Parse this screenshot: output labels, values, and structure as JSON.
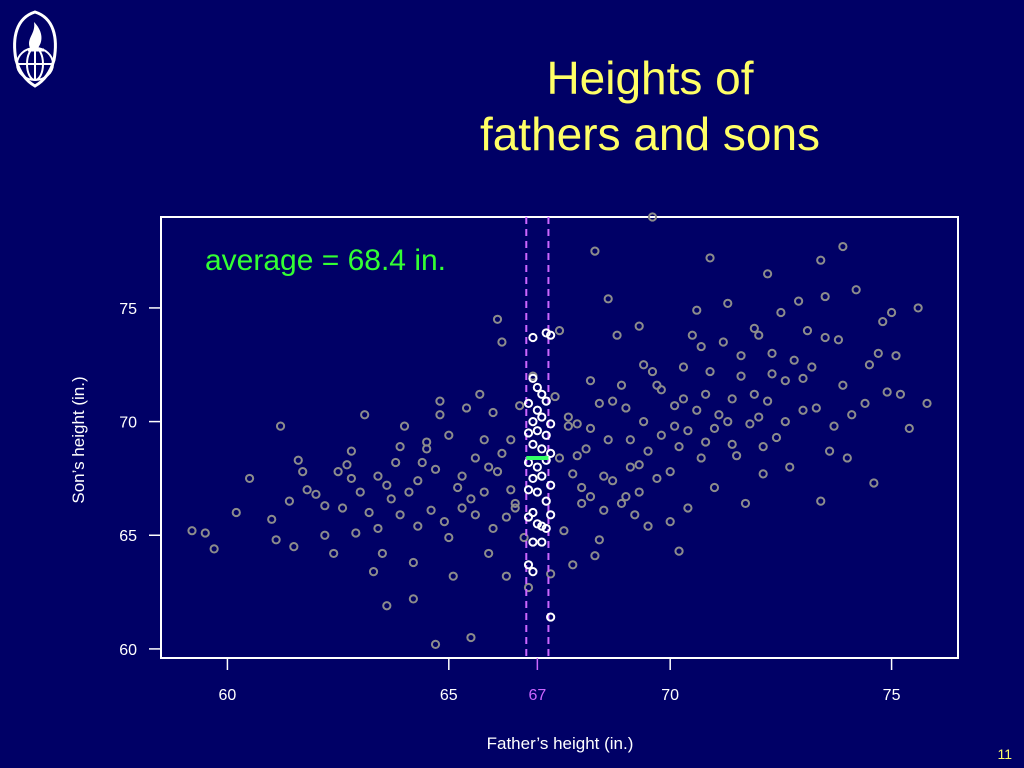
{
  "slide": {
    "title_line1": "Heights of",
    "title_line2": "fathers and sons",
    "page_number": "11"
  },
  "colors": {
    "background": "#000066",
    "title": "#ffff66",
    "points": "#8c8c8c",
    "highlight_points": "#ffffff",
    "guide_lines": "#cc66ff",
    "average_marker": "#33ff66",
    "annotation": "#33ff33",
    "axis": "#ffffff"
  },
  "icons": {
    "logo": "globe-flame-logo-icon"
  },
  "chart_data": {
    "type": "scatter",
    "xlabel": "Father’s height (in.)",
    "ylabel": "Son’s height (in.)",
    "xlim": [
      58.5,
      76.5
    ],
    "ylim": [
      59.6,
      79.0
    ],
    "xticks": [
      60,
      65,
      70,
      75
    ],
    "yticks": [
      60,
      65,
      70,
      75
    ],
    "highlight_tick": {
      "value": 67,
      "label": "67"
    },
    "band": [
      66.75,
      67.25
    ],
    "annotation": "average = 68.4 in.",
    "average_y": 68.4,
    "grid": false,
    "legend": "none",
    "series": [
      {
        "role": "all",
        "points": [
          [
            59.2,
            65.2
          ],
          [
            59.7,
            64.4
          ],
          [
            59.5,
            65.1
          ],
          [
            60.2,
            66.0
          ],
          [
            60.5,
            67.5
          ],
          [
            61.0,
            65.7
          ],
          [
            61.1,
            64.8
          ],
          [
            61.2,
            69.8
          ],
          [
            61.4,
            66.5
          ],
          [
            61.5,
            64.5
          ],
          [
            61.6,
            68.3
          ],
          [
            61.7,
            67.8
          ],
          [
            61.8,
            67.0
          ],
          [
            62.0,
            66.8
          ],
          [
            62.2,
            66.3
          ],
          [
            62.4,
            64.2
          ],
          [
            62.5,
            67.8
          ],
          [
            62.6,
            66.2
          ],
          [
            62.8,
            67.5
          ],
          [
            63.0,
            66.9
          ],
          [
            63.2,
            66.0
          ],
          [
            63.3,
            63.4
          ],
          [
            63.4,
            65.3
          ],
          [
            63.6,
            67.2
          ],
          [
            63.8,
            68.2
          ],
          [
            64.0,
            69.8
          ],
          [
            64.2,
            62.2
          ],
          [
            64.3,
            67.4
          ],
          [
            64.5,
            68.8
          ],
          [
            64.6,
            66.1
          ],
          [
            64.7,
            60.2
          ],
          [
            64.8,
            70.3
          ],
          [
            65.0,
            64.9
          ],
          [
            65.2,
            67.1
          ],
          [
            65.3,
            66.2
          ],
          [
            65.5,
            60.5
          ],
          [
            65.6,
            68.4
          ],
          [
            65.8,
            69.2
          ],
          [
            66.0,
            65.3
          ],
          [
            66.1,
            67.8
          ],
          [
            66.3,
            63.2
          ],
          [
            66.5,
            66.4
          ],
          [
            66.6,
            70.7
          ],
          [
            66.2,
            73.5
          ],
          [
            66.9,
            72.0
          ],
          [
            67.3,
            63.3
          ],
          [
            67.5,
            74.0
          ],
          [
            67.7,
            69.8
          ],
          [
            67.9,
            68.5
          ],
          [
            68.0,
            66.4
          ],
          [
            68.2,
            71.8
          ],
          [
            68.3,
            64.1
          ],
          [
            68.5,
            67.6
          ],
          [
            68.7,
            70.9
          ],
          [
            68.8,
            73.8
          ],
          [
            69.0,
            66.7
          ],
          [
            69.1,
            69.2
          ],
          [
            69.3,
            68.1
          ],
          [
            69.4,
            72.5
          ],
          [
            69.5,
            65.4
          ],
          [
            69.6,
            79.0
          ],
          [
            69.8,
            71.4
          ],
          [
            70.0,
            67.8
          ],
          [
            70.1,
            70.7
          ],
          [
            70.2,
            64.3
          ],
          [
            70.4,
            69.6
          ],
          [
            70.5,
            73.8
          ],
          [
            70.7,
            68.4
          ],
          [
            70.8,
            71.2
          ],
          [
            71.0,
            67.1
          ],
          [
            71.1,
            70.3
          ],
          [
            71.3,
            75.2
          ],
          [
            71.4,
            69.0
          ],
          [
            71.6,
            72.0
          ],
          [
            71.7,
            66.4
          ],
          [
            71.9,
            74.1
          ],
          [
            72.0,
            70.2
          ],
          [
            72.1,
            67.7
          ],
          [
            72.3,
            73.0
          ],
          [
            72.4,
            69.3
          ],
          [
            72.6,
            71.8
          ],
          [
            72.7,
            68.0
          ],
          [
            72.9,
            75.3
          ],
          [
            73.0,
            70.5
          ],
          [
            73.2,
            72.4
          ],
          [
            73.4,
            66.5
          ],
          [
            73.5,
            73.7
          ],
          [
            73.7,
            69.8
          ],
          [
            73.9,
            71.6
          ],
          [
            74.0,
            68.4
          ],
          [
            74.2,
            75.8
          ],
          [
            74.4,
            70.8
          ],
          [
            74.7,
            73.0
          ],
          [
            75.0,
            74.8
          ],
          [
            75.2,
            71.2
          ],
          [
            75.4,
            69.7
          ],
          [
            75.6,
            75.0
          ],
          [
            75.8,
            70.8
          ],
          [
            74.6,
            67.3
          ],
          [
            74.9,
            71.3
          ],
          [
            63.1,
            70.3
          ],
          [
            62.8,
            68.7
          ],
          [
            63.5,
            64.2
          ],
          [
            64.2,
            63.8
          ],
          [
            65.1,
            63.2
          ],
          [
            65.4,
            70.6
          ],
          [
            66.8,
            62.7
          ],
          [
            67.8,
            63.7
          ],
          [
            68.3,
            77.5
          ],
          [
            68.6,
            75.4
          ],
          [
            70.9,
            77.2
          ],
          [
            72.2,
            76.5
          ],
          [
            73.4,
            77.1
          ],
          [
            73.9,
            77.7
          ],
          [
            69.3,
            74.2
          ],
          [
            70.6,
            74.9
          ],
          [
            63.6,
            61.9
          ],
          [
            66.1,
            74.5
          ],
          [
            64.5,
            69.1
          ],
          [
            65.7,
            71.2
          ],
          [
            66.4,
            69.2
          ],
          [
            67.4,
            71.1
          ],
          [
            68.2,
            69.7
          ],
          [
            69.6,
            72.2
          ],
          [
            70.3,
            72.4
          ],
          [
            71.2,
            73.5
          ],
          [
            72.5,
            74.8
          ],
          [
            73.1,
            74.0
          ],
          [
            68.9,
            66.4
          ],
          [
            69.7,
            67.5
          ],
          [
            70.4,
            66.2
          ],
          [
            71.5,
            68.5
          ],
          [
            72.1,
            68.9
          ],
          [
            73.6,
            68.7
          ],
          [
            74.1,
            70.3
          ],
          [
            62.9,
            65.1
          ],
          [
            63.7,
            66.6
          ],
          [
            64.9,
            65.6
          ],
          [
            65.9,
            64.2
          ],
          [
            66.7,
            64.9
          ],
          [
            67.6,
            65.2
          ],
          [
            68.4,
            64.8
          ],
          [
            69.2,
            65.9
          ],
          [
            70.0,
            65.6
          ],
          [
            68.1,
            68.8
          ],
          [
            68.6,
            69.2
          ],
          [
            69.1,
            68.0
          ],
          [
            69.4,
            70.0
          ],
          [
            69.8,
            69.4
          ],
          [
            70.2,
            68.9
          ],
          [
            70.6,
            70.5
          ],
          [
            71.0,
            69.7
          ],
          [
            71.4,
            71.0
          ],
          [
            71.8,
            69.9
          ],
          [
            72.2,
            70.9
          ],
          [
            72.6,
            70.0
          ],
          [
            73.0,
            71.9
          ],
          [
            73.3,
            70.6
          ],
          [
            65.3,
            67.6
          ],
          [
            65.8,
            66.9
          ],
          [
            66.2,
            68.6
          ],
          [
            66.4,
            67.0
          ],
          [
            65.9,
            68.0
          ],
          [
            66.5,
            66.2
          ],
          [
            65.5,
            66.6
          ],
          [
            64.7,
            67.9
          ],
          [
            64.1,
            66.9
          ],
          [
            63.9,
            65.9
          ],
          [
            64.4,
            68.2
          ],
          [
            65.0,
            69.4
          ],
          [
            66.0,
            70.4
          ],
          [
            67.9,
            69.9
          ],
          [
            68.4,
            70.8
          ],
          [
            69.0,
            70.6
          ],
          [
            69.7,
            71.6
          ],
          [
            70.3,
            71.0
          ],
          [
            70.9,
            72.2
          ],
          [
            71.6,
            72.9
          ],
          [
            72.3,
            72.1
          ],
          [
            68.7,
            67.4
          ],
          [
            69.5,
            68.7
          ],
          [
            70.1,
            69.8
          ],
          [
            70.8,
            69.1
          ],
          [
            71.3,
            70.0
          ],
          [
            68.0,
            67.1
          ],
          [
            68.5,
            66.1
          ],
          [
            69.3,
            66.9
          ],
          [
            71.9,
            71.2
          ],
          [
            72.8,
            72.7
          ],
          [
            73.8,
            73.6
          ],
          [
            74.5,
            72.5
          ],
          [
            67.8,
            67.7
          ],
          [
            68.2,
            66.7
          ],
          [
            67.5,
            68.4
          ],
          [
            66.3,
            65.8
          ],
          [
            65.6,
            65.9
          ],
          [
            64.3,
            65.4
          ],
          [
            63.4,
            67.6
          ],
          [
            62.7,
            68.1
          ],
          [
            62.2,
            65.0
          ],
          [
            63.9,
            68.9
          ],
          [
            64.8,
            70.9
          ],
          [
            67.7,
            70.2
          ],
          [
            68.9,
            71.6
          ],
          [
            70.7,
            73.3
          ],
          [
            72.0,
            73.8
          ],
          [
            73.5,
            75.5
          ],
          [
            74.8,
            74.4
          ],
          [
            75.1,
            72.9
          ]
        ]
      },
      {
        "role": "highlight",
        "points": [
          [
            66.9,
            73.7
          ],
          [
            67.2,
            73.9
          ],
          [
            67.3,
            73.8
          ],
          [
            66.9,
            71.9
          ],
          [
            67.0,
            71.5
          ],
          [
            67.1,
            71.2
          ],
          [
            66.8,
            70.8
          ],
          [
            67.0,
            70.5
          ],
          [
            67.2,
            70.9
          ],
          [
            66.9,
            70.0
          ],
          [
            67.1,
            70.2
          ],
          [
            67.3,
            69.9
          ],
          [
            66.8,
            69.5
          ],
          [
            67.0,
            69.6
          ],
          [
            67.2,
            69.4
          ],
          [
            66.9,
            69.0
          ],
          [
            67.1,
            68.8
          ],
          [
            67.3,
            68.6
          ],
          [
            66.8,
            68.2
          ],
          [
            67.0,
            68.0
          ],
          [
            67.2,
            68.3
          ],
          [
            66.9,
            67.5
          ],
          [
            67.1,
            67.6
          ],
          [
            67.3,
            67.2
          ],
          [
            66.8,
            67.0
          ],
          [
            67.0,
            66.9
          ],
          [
            67.2,
            66.5
          ],
          [
            66.9,
            66.0
          ],
          [
            67.1,
            65.4
          ],
          [
            67.3,
            65.9
          ],
          [
            66.8,
            65.8
          ],
          [
            67.0,
            65.5
          ],
          [
            67.2,
            65.3
          ],
          [
            66.9,
            64.7
          ],
          [
            67.1,
            64.7
          ],
          [
            66.8,
            63.7
          ],
          [
            66.9,
            63.4
          ],
          [
            67.3,
            61.4
          ]
        ]
      }
    ]
  }
}
